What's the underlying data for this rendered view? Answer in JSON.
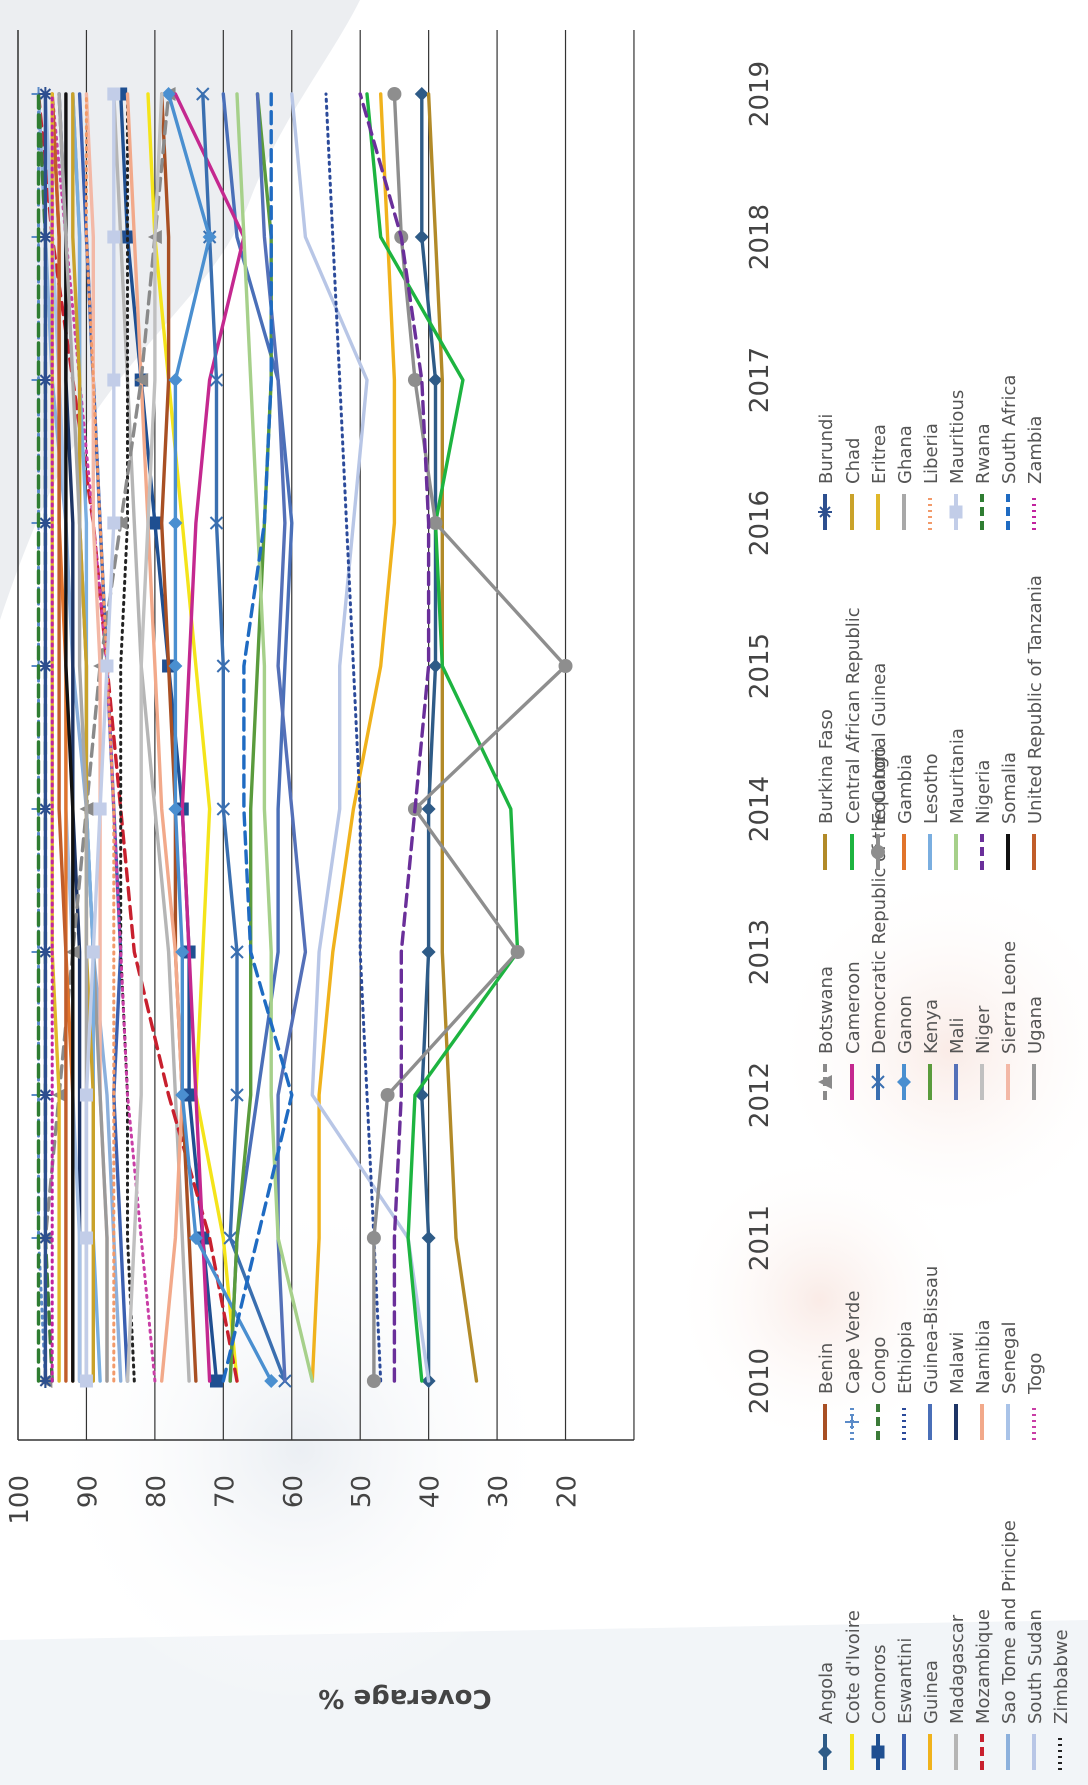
{
  "chart_data": {
    "type": "line",
    "title": "",
    "xlabel": "",
    "ylabel": "Coverage %",
    "x": [
      2010,
      2011,
      2012,
      2013,
      2014,
      2015,
      2016,
      2017,
      2018,
      2019
    ],
    "x_tick_labels": [
      "2010",
      "2011",
      "2012",
      "2013",
      "2014",
      "2015",
      "2016",
      "2017",
      "2018",
      "2019"
    ],
    "y_ticks": [
      20,
      30,
      40,
      50,
      60,
      70,
      80,
      90,
      100
    ],
    "ylim": [
      10,
      100
    ],
    "grid": true,
    "legend_position": "bottom",
    "series": [
      {
        "name": "Angola",
        "color": "#2e5b87",
        "dash": "solid",
        "marker": "diamond",
        "values": [
          40,
          40,
          41,
          40,
          40,
          39,
          39,
          39,
          41,
          41
        ]
      },
      {
        "name": "Cote d'Ivoire",
        "color": "#f4e41a",
        "dash": "solid",
        "marker": "none",
        "values": [
          68,
          70,
          74,
          73,
          72,
          74,
          76,
          78,
          80,
          81
        ]
      },
      {
        "name": "Comoros",
        "color": "#1f4f91",
        "dash": "solid",
        "marker": "square",
        "values": [
          71,
          73,
          75,
          75,
          76,
          78,
          80,
          82,
          84,
          85
        ]
      },
      {
        "name": "Eswantini",
        "color": "#3a5fb0",
        "dash": "solid",
        "marker": "none",
        "values": [
          84,
          85,
          86,
          85,
          86,
          87,
          88,
          89,
          90,
          91
        ]
      },
      {
        "name": "Guinea",
        "color": "#f0b21c",
        "dash": "solid",
        "marker": "none",
        "values": [
          57,
          56,
          56,
          54,
          51,
          47,
          45,
          45,
          46,
          47
        ]
      },
      {
        "name": "Madagascar",
        "color": "#b5b5b5",
        "dash": "solid",
        "marker": "none",
        "values": [
          75,
          76,
          77,
          78,
          80,
          82,
          83,
          84,
          85,
          86
        ]
      },
      {
        "name": "Mozambique",
        "color": "#c8202e",
        "dash": "dash",
        "marker": "none",
        "values": [
          68,
          72,
          78,
          83,
          85,
          87,
          89,
          92,
          95,
          97
        ]
      },
      {
        "name": "Sao Tome and Principe",
        "color": "#8cb0dc",
        "dash": "solid",
        "marker": "none",
        "values": [
          85,
          86,
          87,
          89,
          90,
          92,
          93,
          95,
          96,
          97
        ]
      },
      {
        "name": "South Sudan",
        "color": "#b8c6e6",
        "dash": "solid",
        "marker": "none",
        "values": [
          40,
          43,
          57,
          56,
          53,
          53,
          51,
          49,
          58,
          60
        ]
      },
      {
        "name": "Zimbabwe",
        "color": "#222222",
        "dash": "dot",
        "marker": "none",
        "values": [
          83,
          84,
          84,
          85,
          85,
          85,
          84,
          84,
          84,
          84
        ]
      },
      {
        "name": "Benin",
        "color": "#a84f23",
        "dash": "solid",
        "marker": "none",
        "values": [
          74,
          75,
          76,
          77,
          77,
          78,
          79,
          78,
          78,
          79
        ]
      },
      {
        "name": "Cape Verde",
        "color": "#5b8bc8",
        "dash": "dot",
        "marker": "plus",
        "values": [
          96,
          97,
          97,
          97,
          97,
          97,
          97,
          97,
          97,
          97
        ]
      },
      {
        "name": "Congo",
        "color": "#3b7a38",
        "dash": "dash",
        "marker": "none",
        "values": [
          95,
          96,
          96,
          96,
          96,
          96,
          96,
          96,
          96,
          97
        ]
      },
      {
        "name": "Ethiopia",
        "color": "#2b4a9a",
        "dash": "dot",
        "marker": "none",
        "values": [
          47,
          48,
          49,
          50,
          50,
          51,
          52,
          53,
          54,
          55
        ]
      },
      {
        "name": "Guinea-Bissau",
        "color": "#4a6fb8",
        "dash": "solid",
        "marker": "none",
        "values": [
          69,
          68,
          65,
          62,
          62,
          61,
          60,
          62,
          68,
          70
        ]
      },
      {
        "name": "Malawi",
        "color": "#1e3566",
        "dash": "solid",
        "marker": "none",
        "values": [
          91,
          91,
          91,
          91,
          92,
          92,
          92,
          93,
          93,
          94
        ]
      },
      {
        "name": "Namibia",
        "color": "#f2a98a",
        "dash": "solid",
        "marker": "none",
        "values": [
          79,
          77,
          76,
          77,
          79,
          80,
          81,
          82,
          83,
          84
        ]
      },
      {
        "name": "Senegal",
        "color": "#a9c3e8",
        "dash": "solid",
        "marker": "none",
        "values": [
          91,
          91,
          92,
          92,
          93,
          93,
          93,
          94,
          95,
          96
        ]
      },
      {
        "name": "Togo",
        "color": "#c93ea6",
        "dash": "dot",
        "marker": "none",
        "values": [
          80,
          82,
          84,
          85,
          86,
          87,
          89,
          91,
          93,
          95
        ]
      },
      {
        "name": "Botswana",
        "color": "#8a8a8a",
        "dash": "dash",
        "marker": "triangle",
        "values": [
          96,
          96,
          94,
          92,
          90,
          88,
          85,
          82,
          80,
          78
        ]
      },
      {
        "name": "Cameroon",
        "color": "#c4288f",
        "dash": "solid",
        "marker": "none",
        "values": [
          72,
          73,
          74,
          75,
          76,
          75,
          74,
          72,
          67,
          77
        ]
      },
      {
        "name": "Democratic Republic of the Congo",
        "color": "#3a6fb0",
        "dash": "solid",
        "marker": "x",
        "values": [
          61,
          69,
          68,
          68,
          70,
          70,
          71,
          71,
          72,
          73
        ]
      },
      {
        "name": "Ganon",
        "color": "#4a8fd0",
        "dash": "solid",
        "marker": "diamond",
        "values": [
          63,
          74,
          76,
          76,
          77,
          77,
          77,
          77,
          72,
          78
        ]
      },
      {
        "name": "Kenya",
        "color": "#5a9b3c",
        "dash": "solid",
        "marker": "none",
        "values": [
          69,
          68,
          66,
          66,
          66,
          65,
          64,
          63,
          63,
          65
        ]
      },
      {
        "name": "Mali",
        "color": "#5470b8",
        "dash": "solid",
        "marker": "none",
        "values": [
          61,
          62,
          62,
          58,
          60,
          62,
          61,
          62,
          64,
          65
        ]
      },
      {
        "name": "Niger",
        "color": "#c0c0c0",
        "dash": "solid",
        "marker": "none",
        "values": [
          84,
          83,
          82,
          82,
          82,
          82,
          81,
          80,
          80,
          79
        ]
      },
      {
        "name": "Sierra Leone",
        "color": "#f3b8a6",
        "dash": "solid",
        "marker": "none",
        "values": [
          87,
          87,
          88,
          88,
          88,
          88,
          89,
          89,
          89,
          90
        ]
      },
      {
        "name": "Ugana",
        "color": "#9a9a9a",
        "dash": "solid",
        "marker": "none",
        "values": [
          87,
          87,
          88,
          89,
          90,
          90,
          91,
          91,
          91,
          92
        ]
      },
      {
        "name": "Burkina Faso",
        "color": "#b28a28",
        "dash": "solid",
        "marker": "none",
        "values": [
          33,
          36,
          37,
          38,
          38,
          38,
          38,
          38,
          39,
          40
        ]
      },
      {
        "name": "Central African Republic",
        "color": "#1db440",
        "dash": "solid",
        "marker": "none",
        "values": [
          41,
          43,
          42,
          27,
          28,
          38,
          39,
          35,
          47,
          49
        ]
      },
      {
        "name": "Equatorial Guinea",
        "color": "#8e8e8e",
        "dash": "solid",
        "marker": "circle",
        "values": [
          48,
          48,
          46,
          27,
          42,
          20,
          39,
          42,
          44,
          45
        ]
      },
      {
        "name": "Gambia",
        "color": "#e1742b",
        "dash": "solid",
        "marker": "none",
        "values": [
          92,
          92,
          92,
          93,
          93,
          93,
          94,
          94,
          94,
          95
        ]
      },
      {
        "name": "Lesotho",
        "color": "#7aaee0",
        "dash": "solid",
        "marker": "none",
        "values": [
          88,
          89,
          89,
          89,
          90,
          90,
          90,
          91,
          91,
          92
        ]
      },
      {
        "name": "Mauritania",
        "color": "#a6d08a",
        "dash": "solid",
        "marker": "none",
        "values": [
          57,
          62,
          63,
          63,
          64,
          64,
          65,
          66,
          67,
          68
        ]
      },
      {
        "name": "Nigeria",
        "color": "#6a2f9a",
        "dash": "dash",
        "marker": "none",
        "values": [
          45,
          45,
          44,
          44,
          42,
          40,
          40,
          41,
          44,
          50
        ]
      },
      {
        "name": "Somalia",
        "color": "#111111",
        "dash": "solid",
        "marker": "none",
        "values": [
          92,
          92,
          92,
          92,
          92,
          93,
          93,
          93,
          93,
          93
        ]
      },
      {
        "name": "United Republic of Tanzania",
        "color": "#c15d2a",
        "dash": "solid",
        "marker": "none",
        "values": [
          93,
          93,
          93,
          93,
          94,
          94,
          94,
          94,
          94,
          95
        ]
      },
      {
        "name": "Burundi",
        "color": "#2d4f8f",
        "dash": "solid",
        "marker": "star",
        "values": [
          96,
          96,
          96,
          96,
          96,
          96,
          96,
          96,
          96,
          96
        ]
      },
      {
        "name": "Chad",
        "color": "#c9a22a",
        "dash": "solid",
        "marker": "none",
        "values": [
          89,
          89,
          89,
          90,
          90,
          90,
          91,
          91,
          92,
          92
        ]
      },
      {
        "name": "Eritrea",
        "color": "#e0b82a",
        "dash": "solid",
        "marker": "none",
        "values": [
          94,
          94,
          94,
          95,
          95,
          95,
          95,
          95,
          95,
          95
        ]
      },
      {
        "name": "Ghana",
        "color": "#a8a8a8",
        "dash": "solid",
        "marker": "none",
        "values": [
          90,
          90,
          90,
          90,
          90,
          91,
          91,
          92,
          93,
          94
        ]
      },
      {
        "name": "Liberia",
        "color": "#f29a6a",
        "dash": "dot",
        "marker": "none",
        "values": [
          86,
          86,
          86,
          86,
          86,
          87,
          88,
          89,
          90,
          90
        ]
      },
      {
        "name": "Mauritious",
        "color": "#c2cde8",
        "dash": "solid",
        "marker": "square",
        "values": [
          90,
          90,
          90,
          89,
          88,
          87,
          86,
          86,
          86,
          86
        ]
      },
      {
        "name": "Rwana",
        "color": "#2f7d32",
        "dash": "dash",
        "marker": "none",
        "values": [
          97,
          97,
          97,
          97,
          97,
          97,
          97,
          97,
          97,
          97
        ]
      },
      {
        "name": "South Africa",
        "color": "#1f6bc2",
        "dash": "dash",
        "marker": "none",
        "values": [
          70,
          65,
          60,
          66,
          67,
          67,
          64,
          63,
          63,
          63
        ]
      },
      {
        "name": "Zambia",
        "color": "#c2239f",
        "dash": "dot",
        "marker": "none",
        "values": [
          95,
          95,
          95,
          95,
          95,
          95,
          95,
          95,
          95,
          95
        ]
      }
    ]
  }
}
